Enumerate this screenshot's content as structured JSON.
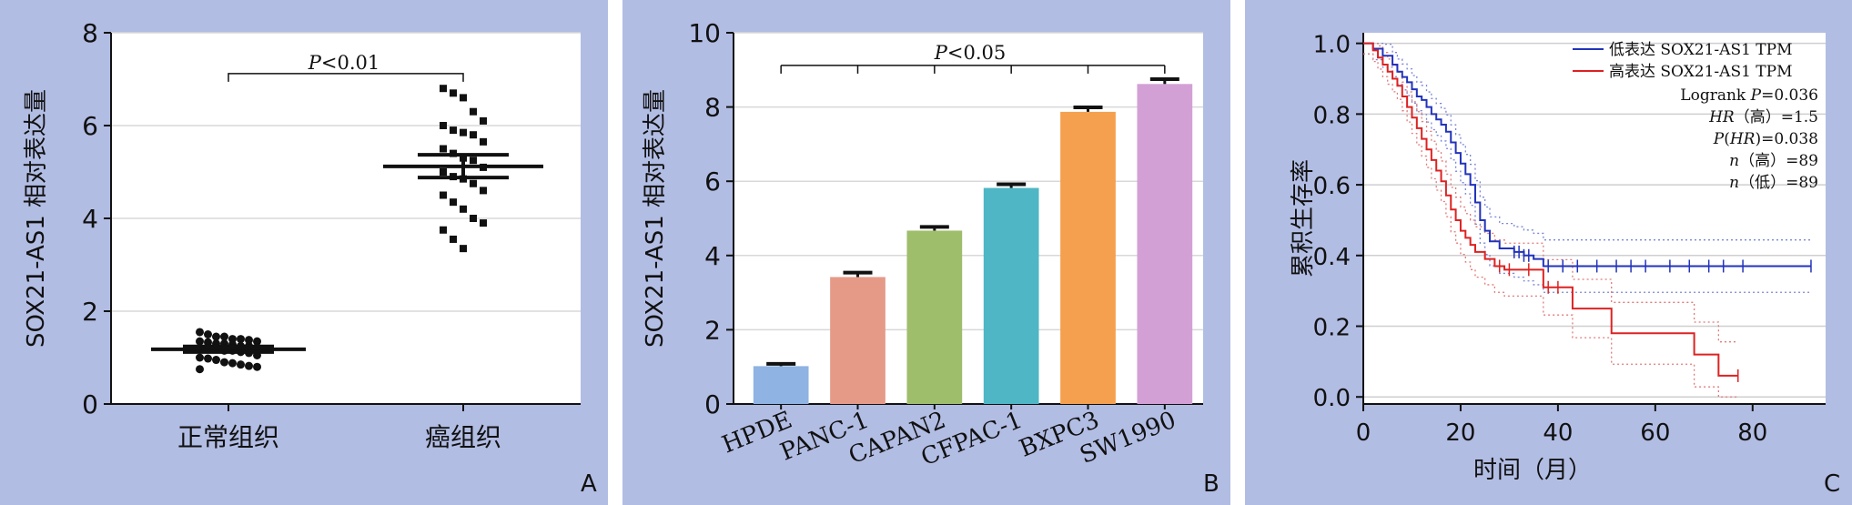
{
  "chart_data": [
    {
      "type": "scatter",
      "panel_letter": "A",
      "ylabel": "SOX21-AS1 相对表达量",
      "xlabel": "",
      "ylim": [
        0,
        8
      ],
      "yticks": [
        "0",
        "2",
        "4",
        "6",
        "8"
      ],
      "grid": true,
      "categories": [
        "正常组织",
        "癌组织"
      ],
      "series": [
        {
          "values": [
            1.55,
            1.5,
            1.45,
            1.45,
            1.4,
            1.4,
            1.38,
            1.35,
            1.35,
            1.33,
            1.3,
            1.3,
            1.28,
            1.25,
            1.25,
            1.22,
            1.2,
            1.2,
            1.18,
            1.15,
            1.15,
            1.12,
            1.1,
            1.05,
            1.0,
            0.98,
            0.95,
            0.9,
            0.88,
            0.85,
            0.82,
            0.8,
            0.75
          ],
          "mean": 1.18,
          "sem_low": 1.12,
          "sem_high": 1.24
        },
        {
          "values": [
            6.8,
            6.7,
            6.6,
            6.3,
            6.1,
            6.0,
            5.9,
            5.85,
            5.8,
            5.65,
            5.5,
            5.4,
            5.3,
            5.25,
            5.1,
            5.0,
            4.9,
            4.85,
            4.75,
            4.6,
            4.5,
            4.35,
            4.2,
            4.0,
            3.9,
            3.75,
            3.55,
            3.35
          ],
          "mean": 5.12,
          "sem_low": 4.88,
          "sem_high": 5.37
        }
      ],
      "annotations": [
        {
          "text_italic": "P",
          "text": "<0.01"
        }
      ]
    },
    {
      "type": "bar",
      "panel_letter": "B",
      "ylabel": "SOX21-AS1 相对表达量",
      "xlabel": "",
      "ylim": [
        0,
        10
      ],
      "yticks": [
        "0",
        "2",
        "4",
        "6",
        "8",
        "10"
      ],
      "grid": true,
      "categories": [
        "HPDE",
        "PANC-1",
        "CAPAN2",
        "CFPAC-1",
        "BXPC3",
        "SW1990"
      ],
      "values": [
        1.02,
        3.42,
        4.67,
        5.82,
        7.87,
        8.62
      ],
      "errors": [
        0.06,
        0.12,
        0.1,
        0.1,
        0.12,
        0.13
      ],
      "colors": [
        "#8fb3e2",
        "#e59a88",
        "#9fbe6c",
        "#4fb6c5",
        "#f5a04e",
        "#d3a0d6"
      ],
      "annotations": [
        {
          "text_italic": "P",
          "text": "<0.05"
        }
      ]
    },
    {
      "type": "line",
      "panel_letter": "C",
      "xlabel": "时间（月）",
      "ylabel": "累积生存率",
      "xlim": [
        0,
        95
      ],
      "ylim": [
        -0.02,
        1.03
      ],
      "xticks": [
        "0",
        "20",
        "40",
        "60",
        "80"
      ],
      "yticks": [
        "0.0",
        "0.2",
        "0.4",
        "0.6",
        "0.8",
        "1.0"
      ],
      "grid": true,
      "legend_position": "top-right",
      "series": [
        {
          "name": "低表达 SOX21-AS1 TPM",
          "color": "#2233bb",
          "x": [
            0,
            2,
            4,
            6,
            7,
            8,
            9,
            10,
            11,
            12,
            13,
            14,
            15,
            16,
            17,
            18,
            19,
            20,
            21,
            22,
            23,
            24,
            25,
            26,
            28,
            31,
            33,
            35,
            37,
            92
          ],
          "y": [
            1.0,
            0.985,
            0.965,
            0.94,
            0.92,
            0.905,
            0.89,
            0.87,
            0.85,
            0.84,
            0.82,
            0.8,
            0.785,
            0.77,
            0.75,
            0.72,
            0.69,
            0.66,
            0.63,
            0.6,
            0.55,
            0.5,
            0.47,
            0.44,
            0.42,
            0.41,
            0.4,
            0.39,
            0.37,
            0.37
          ],
          "censor_x": [
            31,
            32,
            33,
            34,
            38,
            41,
            44,
            48,
            52,
            55,
            58,
            63,
            67,
            71,
            74,
            78,
            92
          ]
        },
        {
          "name": "高表达 SOX21-AS1 TPM",
          "color": "#dd2222",
          "x": [
            0,
            2,
            3,
            4,
            5,
            6,
            7,
            8,
            9,
            10,
            11,
            12,
            13,
            14,
            15,
            16,
            17,
            18,
            19,
            20,
            21,
            22,
            23,
            25,
            27,
            29,
            37,
            43,
            51,
            68,
            73,
            77
          ],
          "y": [
            1.0,
            0.98,
            0.96,
            0.94,
            0.92,
            0.9,
            0.88,
            0.85,
            0.82,
            0.79,
            0.76,
            0.73,
            0.7,
            0.67,
            0.64,
            0.61,
            0.57,
            0.53,
            0.5,
            0.47,
            0.45,
            0.43,
            0.41,
            0.39,
            0.37,
            0.36,
            0.31,
            0.25,
            0.18,
            0.12,
            0.06,
            0.06
          ],
          "censor_x": [
            28,
            30,
            34,
            38,
            40,
            77
          ]
        }
      ],
      "annotations": [
        {
          "text": "Logrank ",
          "text_italic": "P",
          "text_after": "=0.036"
        },
        {
          "text_italic": "HR",
          "text": "（高）=1.5"
        },
        {
          "text_italic": "P",
          "text": "(",
          "text_mid_italic": "HR",
          "text_after": ")=0.038"
        },
        {
          "text_italic": "n",
          "text": "（高）=89"
        },
        {
          "text_italic": "n",
          "text": "（低）=89"
        }
      ]
    }
  ]
}
